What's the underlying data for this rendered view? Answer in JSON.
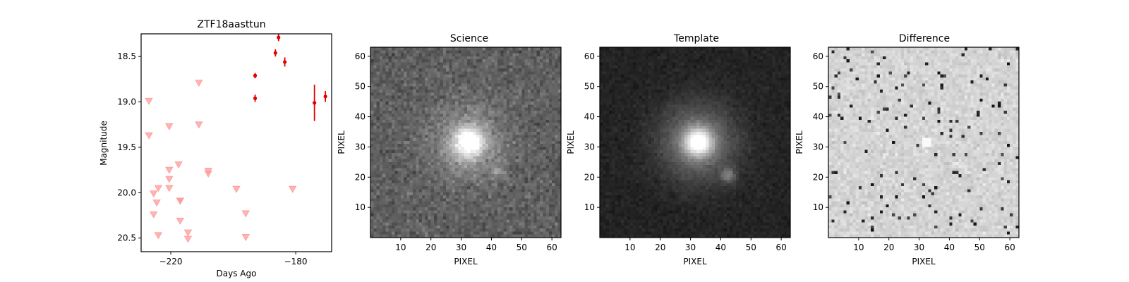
{
  "chart_data": [
    {
      "type": "scatter",
      "title": "ZTF18aasttun",
      "xlabel": "Days Ago",
      "ylabel": "Magnitude",
      "xlim": [
        -229.5,
        -168.5
      ],
      "ylim": [
        20.65,
        18.25
      ],
      "y_inverted": true,
      "xticks": [
        -220,
        -180
      ],
      "yticks": [
        18.5,
        19.0,
        19.5,
        20.0,
        20.5
      ],
      "colors": {
        "detection": "#e00000",
        "upper_limit": "#ff9a9a"
      },
      "series": [
        {
          "marker": "point-with-errorbar",
          "points": [
            {
              "x": -193.0,
              "y": 18.71,
              "err": 0.03
            },
            {
              "x": -193.0,
              "y": 18.96,
              "err": 0.04
            },
            {
              "x": -186.5,
              "y": 18.46,
              "err": 0.04
            },
            {
              "x": -185.5,
              "y": 18.29,
              "err": 0.04
            },
            {
              "x": -183.5,
              "y": 18.56,
              "err": 0.05
            },
            {
              "x": -174.0,
              "y": 19.01,
              "err": 0.2
            },
            {
              "x": -170.5,
              "y": 18.94,
              "err": 0.06
            }
          ]
        },
        {
          "marker": "triangle-down",
          "points": [
            {
              "x": -227.0,
              "y": 18.99
            },
            {
              "x": -227.0,
              "y": 19.37
            },
            {
              "x": -225.5,
              "y": 20.01
            },
            {
              "x": -225.5,
              "y": 20.24
            },
            {
              "x": -224.5,
              "y": 20.11
            },
            {
              "x": -224.0,
              "y": 20.47
            },
            {
              "x": -224.0,
              "y": 19.95
            },
            {
              "x": -220.5,
              "y": 19.75
            },
            {
              "x": -220.5,
              "y": 19.85
            },
            {
              "x": -220.5,
              "y": 19.95
            },
            {
              "x": -220.5,
              "y": 19.27
            },
            {
              "x": -217.5,
              "y": 19.69
            },
            {
              "x": -217.0,
              "y": 20.09
            },
            {
              "x": -217.0,
              "y": 20.09
            },
            {
              "x": -217.0,
              "y": 20.31
            },
            {
              "x": -214.5,
              "y": 20.44
            },
            {
              "x": -214.5,
              "y": 20.51
            },
            {
              "x": -211.0,
              "y": 18.79
            },
            {
              "x": -211.0,
              "y": 19.25
            },
            {
              "x": -208.0,
              "y": 19.76
            },
            {
              "x": -208.0,
              "y": 19.79
            },
            {
              "x": -199.0,
              "y": 19.96
            },
            {
              "x": -196.0,
              "y": 20.23
            },
            {
              "x": -196.0,
              "y": 20.49
            },
            {
              "x": -181.0,
              "y": 19.96
            }
          ]
        }
      ]
    },
    {
      "type": "heatmap",
      "title": "Science",
      "xlabel": "PIXEL",
      "ylabel": "PIXEL",
      "xlim": [
        0,
        63
      ],
      "ylim": [
        0,
        63
      ],
      "xticks": [
        10,
        20,
        30,
        40,
        50,
        60
      ],
      "yticks": [
        10,
        20,
        30,
        40,
        50,
        60
      ],
      "colormap": "grayscale",
      "size": 63
    },
    {
      "type": "heatmap",
      "title": "Template",
      "xlabel": "PIXEL",
      "ylabel": "PIXEL",
      "xlim": [
        0,
        63
      ],
      "ylim": [
        0,
        63
      ],
      "xticks": [
        10,
        20,
        30,
        40,
        50,
        60
      ],
      "yticks": [
        10,
        20,
        30,
        40,
        50,
        60
      ],
      "colormap": "grayscale",
      "size": 63
    },
    {
      "type": "heatmap",
      "title": "Difference",
      "xlabel": "PIXEL",
      "ylabel": "PIXEL",
      "xlim": [
        0,
        63
      ],
      "ylim": [
        0,
        63
      ],
      "xticks": [
        10,
        20,
        30,
        40,
        50,
        60
      ],
      "yticks": [
        10,
        20,
        30,
        40,
        50,
        60
      ],
      "colormap": "grayscale",
      "size": 63
    }
  ]
}
